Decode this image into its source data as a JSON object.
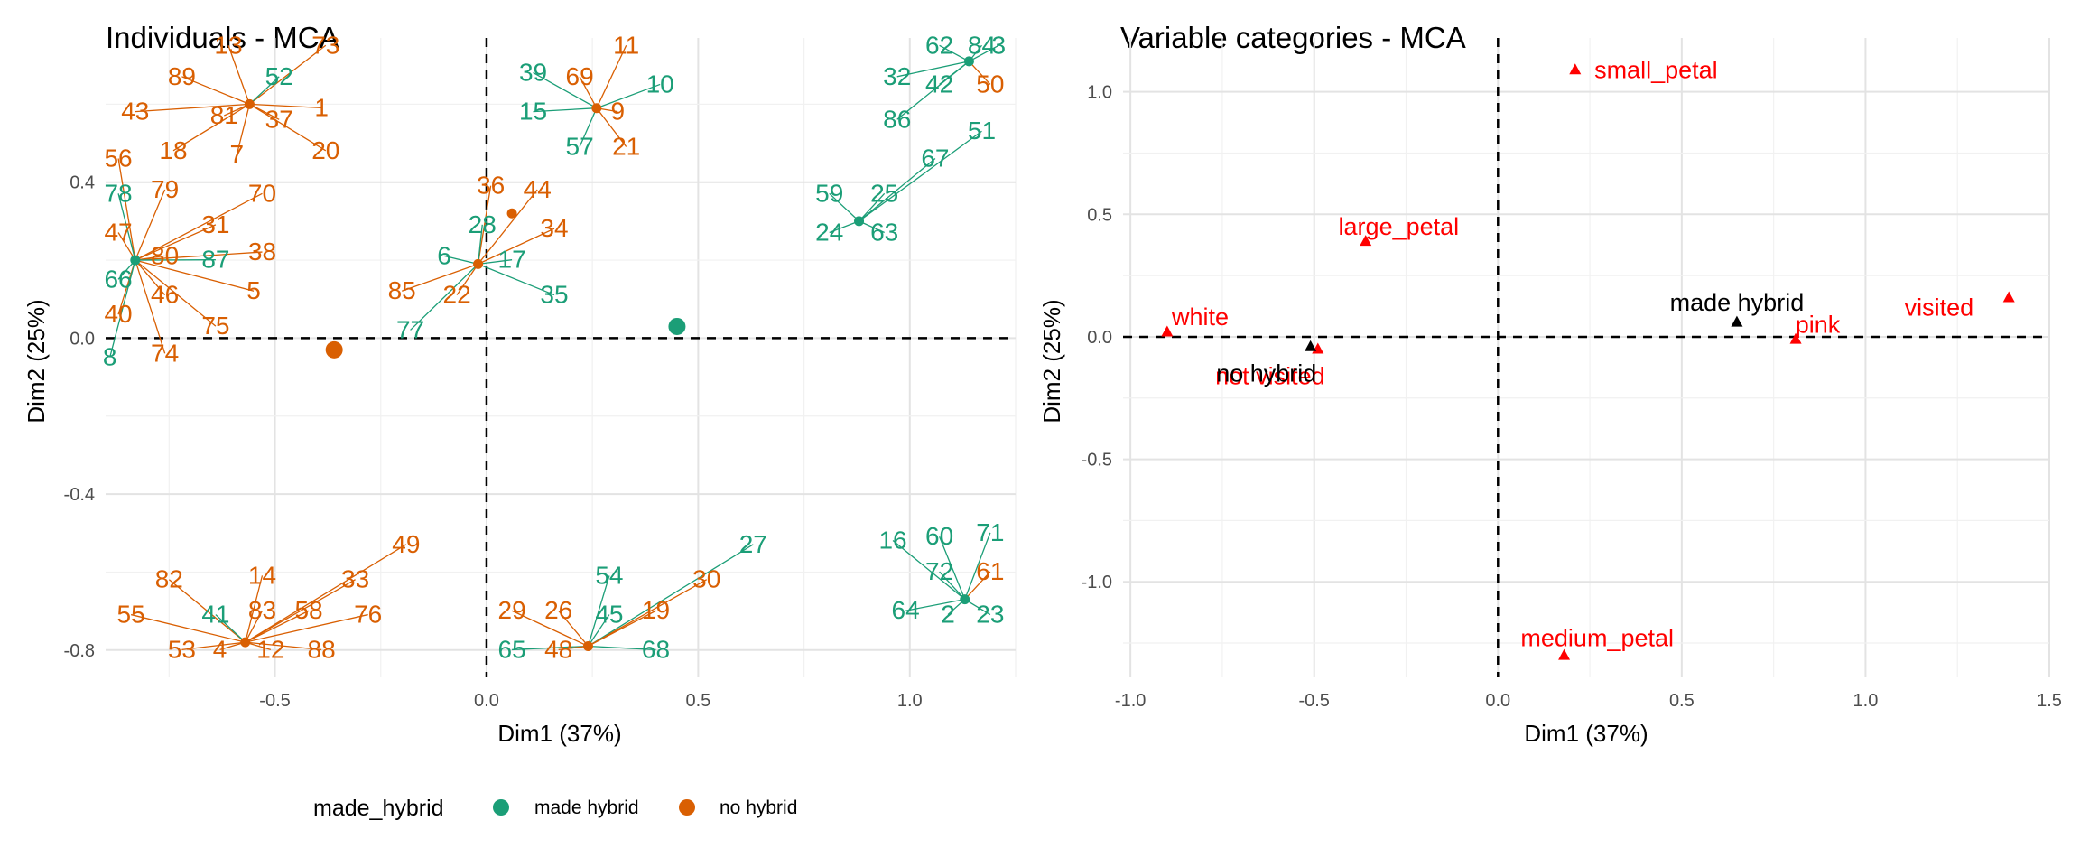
{
  "colors": {
    "made_hybrid": "#1b9e77",
    "no_hybrid": "#d95f02",
    "variable": "#ff0000",
    "supplementary": "#000000"
  },
  "legend": {
    "title": "made_hybrid",
    "items": [
      {
        "label": "made hybrid",
        "color": "#1b9e77"
      },
      {
        "label": "no hybrid",
        "color": "#d95f02"
      }
    ]
  },
  "chart_data": [
    {
      "type": "scatter",
      "title": "Individuals - MCA",
      "xlabel": "Dim1 (37%)",
      "ylabel": "Dim2 (25%)",
      "xlim": [
        -0.9,
        1.25
      ],
      "ylim": [
        -0.87,
        0.77
      ],
      "xticks": [
        -0.5,
        0.0,
        0.5,
        1.0
      ],
      "xtick_labels": [
        "-0.5",
        "0.0",
        "0.5",
        "1.0"
      ],
      "yticks": [
        -0.8,
        -0.4,
        0.0,
        0.4
      ],
      "ytick_labels": [
        "-0.8",
        "-0.4",
        "0.0",
        "0.4"
      ],
      "grid": true,
      "legend_position": "bottom",
      "centroids": [
        {
          "group": "no hybrid",
          "x": -0.36,
          "y": -0.03
        },
        {
          "group": "made hybrid",
          "x": 0.45,
          "y": 0.03
        }
      ],
      "clusters": [
        {
          "x": -0.56,
          "y": 0.6,
          "point_group": "no hybrid",
          "labels": [
            {
              "t": "13",
              "g": "no hybrid",
              "x": -0.61,
              "y": 0.73
            },
            {
              "t": "73",
              "g": "no hybrid",
              "x": -0.38,
              "y": 0.73
            },
            {
              "t": "89",
              "g": "no hybrid",
              "x": -0.72,
              "y": 0.65
            },
            {
              "t": "52",
              "g": "made hybrid",
              "x": -0.49,
              "y": 0.65
            },
            {
              "t": "43",
              "g": "no hybrid",
              "x": -0.83,
              "y": 0.56
            },
            {
              "t": "1",
              "g": "no hybrid",
              "x": -0.39,
              "y": 0.57
            },
            {
              "t": "81",
              "g": "no hybrid",
              "x": -0.62,
              "y": 0.55
            },
            {
              "t": "37",
              "g": "no hybrid",
              "x": -0.49,
              "y": 0.54
            },
            {
              "t": "18",
              "g": "no hybrid",
              "x": -0.74,
              "y": 0.46
            },
            {
              "t": "7",
              "g": "no hybrid",
              "x": -0.59,
              "y": 0.45
            },
            {
              "t": "20",
              "g": "no hybrid",
              "x": -0.38,
              "y": 0.46
            }
          ]
        },
        {
          "x": 0.26,
          "y": 0.59,
          "point_group": "no hybrid",
          "labels": [
            {
              "t": "11",
              "g": "no hybrid",
              "x": 0.33,
              "y": 0.73
            },
            {
              "t": "39",
              "g": "made hybrid",
              "x": 0.11,
              "y": 0.66
            },
            {
              "t": "69",
              "g": "no hybrid",
              "x": 0.22,
              "y": 0.65
            },
            {
              "t": "10",
              "g": "made hybrid",
              "x": 0.41,
              "y": 0.63
            },
            {
              "t": "15",
              "g": "made hybrid",
              "x": 0.11,
              "y": 0.56
            },
            {
              "t": "9",
              "g": "no hybrid",
              "x": 0.31,
              "y": 0.56
            },
            {
              "t": "57",
              "g": "made hybrid",
              "x": 0.22,
              "y": 0.47
            },
            {
              "t": "21",
              "g": "no hybrid",
              "x": 0.33,
              "y": 0.47
            }
          ]
        },
        {
          "x": 1.14,
          "y": 0.71,
          "point_group": "made hybrid",
          "labels": [
            {
              "t": "62",
              "g": "made hybrid",
              "x": 1.07,
              "y": 0.73
            },
            {
              "t": "84",
              "g": "made hybrid",
              "x": 1.17,
              "y": 0.73
            },
            {
              "t": "3",
              "g": "made hybrid",
              "x": 1.21,
              "y": 0.73
            },
            {
              "t": "32",
              "g": "made hybrid",
              "x": 0.97,
              "y": 0.65
            },
            {
              "t": "42",
              "g": "made hybrid",
              "x": 1.07,
              "y": 0.63
            },
            {
              "t": "50",
              "g": "no hybrid",
              "x": 1.19,
              "y": 0.63
            },
            {
              "t": "86",
              "g": "made hybrid",
              "x": 0.97,
              "y": 0.54
            }
          ]
        },
        {
          "x": 0.88,
          "y": 0.3,
          "point_group": "made hybrid",
          "labels": [
            {
              "t": "51",
              "g": "made hybrid",
              "x": 1.17,
              "y": 0.51
            },
            {
              "t": "67",
              "g": "made hybrid",
              "x": 1.06,
              "y": 0.44
            },
            {
              "t": "59",
              "g": "made hybrid",
              "x": 0.81,
              "y": 0.35
            },
            {
              "t": "25",
              "g": "made hybrid",
              "x": 0.94,
              "y": 0.35
            },
            {
              "t": "24",
              "g": "made hybrid",
              "x": 0.81,
              "y": 0.25
            },
            {
              "t": "63",
              "g": "made hybrid",
              "x": 0.94,
              "y": 0.25
            }
          ]
        },
        {
          "x": 0.06,
          "y": 0.32,
          "point_group": "no hybrid",
          "labels": []
        },
        {
          "x": -0.02,
          "y": 0.19,
          "point_group": "no hybrid",
          "labels": [
            {
              "t": "36",
              "g": "no hybrid",
              "x": 0.01,
              "y": 0.37
            },
            {
              "t": "44",
              "g": "no hybrid",
              "x": 0.12,
              "y": 0.36
            },
            {
              "t": "28",
              "g": "made hybrid",
              "x": -0.01,
              "y": 0.27
            },
            {
              "t": "34",
              "g": "no hybrid",
              "x": 0.16,
              "y": 0.26
            },
            {
              "t": "6",
              "g": "made hybrid",
              "x": -0.1,
              "y": 0.19
            },
            {
              "t": "17",
              "g": "made hybrid",
              "x": 0.06,
              "y": 0.18
            },
            {
              "t": "85",
              "g": "no hybrid",
              "x": -0.2,
              "y": 0.1
            },
            {
              "t": "22",
              "g": "no hybrid",
              "x": -0.07,
              "y": 0.09
            },
            {
              "t": "35",
              "g": "made hybrid",
              "x": 0.16,
              "y": 0.09
            },
            {
              "t": "77",
              "g": "made hybrid",
              "x": -0.18,
              "y": 0.0
            }
          ]
        },
        {
          "x": -0.83,
          "y": 0.2,
          "point_group": "made hybrid",
          "labels": [
            {
              "t": "56",
              "g": "no hybrid",
              "x": -0.87,
              "y": 0.44
            },
            {
              "t": "79",
              "g": "no hybrid",
              "x": -0.76,
              "y": 0.36
            },
            {
              "t": "70",
              "g": "no hybrid",
              "x": -0.53,
              "y": 0.35
            },
            {
              "t": "78",
              "g": "made hybrid",
              "x": -0.87,
              "y": 0.35
            },
            {
              "t": "31",
              "g": "no hybrid",
              "x": -0.64,
              "y": 0.27
            },
            {
              "t": "47",
              "g": "no hybrid",
              "x": -0.87,
              "y": 0.25
            },
            {
              "t": "38",
              "g": "no hybrid",
              "x": -0.53,
              "y": 0.2
            },
            {
              "t": "80",
              "g": "no hybrid",
              "x": -0.76,
              "y": 0.19
            },
            {
              "t": "87",
              "g": "made hybrid",
              "x": -0.64,
              "y": 0.18
            },
            {
              "t": "66",
              "g": "made hybrid",
              "x": -0.87,
              "y": 0.13
            },
            {
              "t": "46",
              "g": "no hybrid",
              "x": -0.76,
              "y": 0.09
            },
            {
              "t": "5",
              "g": "no hybrid",
              "x": -0.55,
              "y": 0.1
            },
            {
              "t": "40",
              "g": "no hybrid",
              "x": -0.87,
              "y": 0.04
            },
            {
              "t": "75",
              "g": "no hybrid",
              "x": -0.64,
              "y": 0.01
            },
            {
              "t": "74",
              "g": "no hybrid",
              "x": -0.76,
              "y": -0.06
            },
            {
              "t": "8",
              "g": "made hybrid",
              "x": -0.89,
              "y": -0.07
            }
          ]
        },
        {
          "x": -0.57,
          "y": -0.78,
          "point_group": "no hybrid",
          "labels": [
            {
              "t": "49",
              "g": "no hybrid",
              "x": -0.19,
              "y": -0.55
            },
            {
              "t": "82",
              "g": "no hybrid",
              "x": -0.75,
              "y": -0.64
            },
            {
              "t": "14",
              "g": "no hybrid",
              "x": -0.53,
              "y": -0.63
            },
            {
              "t": "33",
              "g": "no hybrid",
              "x": -0.31,
              "y": -0.64
            },
            {
              "t": "41",
              "g": "made hybrid",
              "x": -0.64,
              "y": -0.73
            },
            {
              "t": "83",
              "g": "no hybrid",
              "x": -0.53,
              "y": -0.72
            },
            {
              "t": "58",
              "g": "no hybrid",
              "x": -0.42,
              "y": -0.72
            },
            {
              "t": "76",
              "g": "no hybrid",
              "x": -0.28,
              "y": -0.73
            },
            {
              "t": "55",
              "g": "no hybrid",
              "x": -0.84,
              "y": -0.73
            },
            {
              "t": "53",
              "g": "no hybrid",
              "x": -0.72,
              "y": -0.82
            },
            {
              "t": "4",
              "g": "no hybrid",
              "x": -0.63,
              "y": -0.82
            },
            {
              "t": "12",
              "g": "no hybrid",
              "x": -0.51,
              "y": -0.82
            },
            {
              "t": "88",
              "g": "no hybrid",
              "x": -0.39,
              "y": -0.82
            }
          ]
        },
        {
          "x": 0.24,
          "y": -0.79,
          "point_group": "no hybrid",
          "labels": [
            {
              "t": "27",
              "g": "made hybrid",
              "x": 0.63,
              "y": -0.55
            },
            {
              "t": "30",
              "g": "no hybrid",
              "x": 0.52,
              "y": -0.64
            },
            {
              "t": "54",
              "g": "made hybrid",
              "x": 0.29,
              "y": -0.63
            },
            {
              "t": "29",
              "g": "no hybrid",
              "x": 0.06,
              "y": -0.72
            },
            {
              "t": "26",
              "g": "no hybrid",
              "x": 0.17,
              "y": -0.72
            },
            {
              "t": "45",
              "g": "made hybrid",
              "x": 0.29,
              "y": -0.73
            },
            {
              "t": "19",
              "g": "no hybrid",
              "x": 0.4,
              "y": -0.72
            },
            {
              "t": "65",
              "g": "made hybrid",
              "x": 0.06,
              "y": -0.82
            },
            {
              "t": "48",
              "g": "no hybrid",
              "x": 0.17,
              "y": -0.82
            },
            {
              "t": "68",
              "g": "made hybrid",
              "x": 0.4,
              "y": -0.82
            }
          ]
        },
        {
          "x": 1.13,
          "y": -0.67,
          "point_group": "made hybrid",
          "labels": [
            {
              "t": "16",
              "g": "made hybrid",
              "x": 0.96,
              "y": -0.54
            },
            {
              "t": "60",
              "g": "made hybrid",
              "x": 1.07,
              "y": -0.53
            },
            {
              "t": "71",
              "g": "made hybrid",
              "x": 1.19,
              "y": -0.52
            },
            {
              "t": "72",
              "g": "made hybrid",
              "x": 1.07,
              "y": -0.62
            },
            {
              "t": "61",
              "g": "no hybrid",
              "x": 1.19,
              "y": -0.62
            },
            {
              "t": "64",
              "g": "made hybrid",
              "x": 0.99,
              "y": -0.72
            },
            {
              "t": "2",
              "g": "made hybrid",
              "x": 1.09,
              "y": -0.73
            },
            {
              "t": "23",
              "g": "made hybrid",
              "x": 1.19,
              "y": -0.73
            }
          ]
        }
      ]
    },
    {
      "type": "scatter",
      "title": "Variable categories - MCA",
      "xlabel": "Dim1 (37%)",
      "ylabel": "Dim2 (25%)",
      "xlim": [
        -1.02,
        1.5
      ],
      "ylim": [
        -1.39,
        1.22
      ],
      "xticks": [
        -1.0,
        -0.5,
        0.0,
        0.5,
        1.0,
        1.5
      ],
      "xtick_labels": [
        "-1.0",
        "-0.5",
        "0.0",
        "0.5",
        "1.0",
        "1.5"
      ],
      "yticks": [
        -1.0,
        -0.5,
        0.0,
        0.5,
        1.0
      ],
      "ytick_labels": [
        "-1.0",
        "-0.5",
        "0.0",
        "0.5",
        "1.0"
      ],
      "grid": true,
      "points": [
        {
          "label": "small_petal",
          "x": 0.21,
          "y": 1.09,
          "group": "active",
          "tx": 0.43,
          "ty": 1.09
        },
        {
          "label": "large_petal",
          "x": -0.36,
          "y": 0.39,
          "group": "active",
          "tx": -0.27,
          "ty": 0.45
        },
        {
          "label": "white",
          "x": -0.9,
          "y": 0.02,
          "group": "active",
          "tx": -0.81,
          "ty": 0.08
        },
        {
          "label": "visited",
          "x": 1.39,
          "y": 0.16,
          "group": "active",
          "tx": 1.2,
          "ty": 0.12
        },
        {
          "label": "pink",
          "x": 0.81,
          "y": -0.01,
          "group": "active",
          "tx": 0.87,
          "ty": 0.05
        },
        {
          "label": "not visited",
          "x": -0.49,
          "y": -0.05,
          "group": "active",
          "tx": -0.62,
          "ty": -0.16
        },
        {
          "label": "medium_petal",
          "x": 0.18,
          "y": -1.3,
          "group": "active",
          "tx": 0.27,
          "ty": -1.23
        },
        {
          "label": "made hybrid",
          "x": 0.65,
          "y": 0.06,
          "group": "supplementary",
          "tx": 0.65,
          "ty": 0.14
        },
        {
          "label": "no hybrid",
          "x": -0.51,
          "y": -0.04,
          "group": "supplementary",
          "tx": -0.63,
          "ty": -0.15
        }
      ]
    }
  ]
}
